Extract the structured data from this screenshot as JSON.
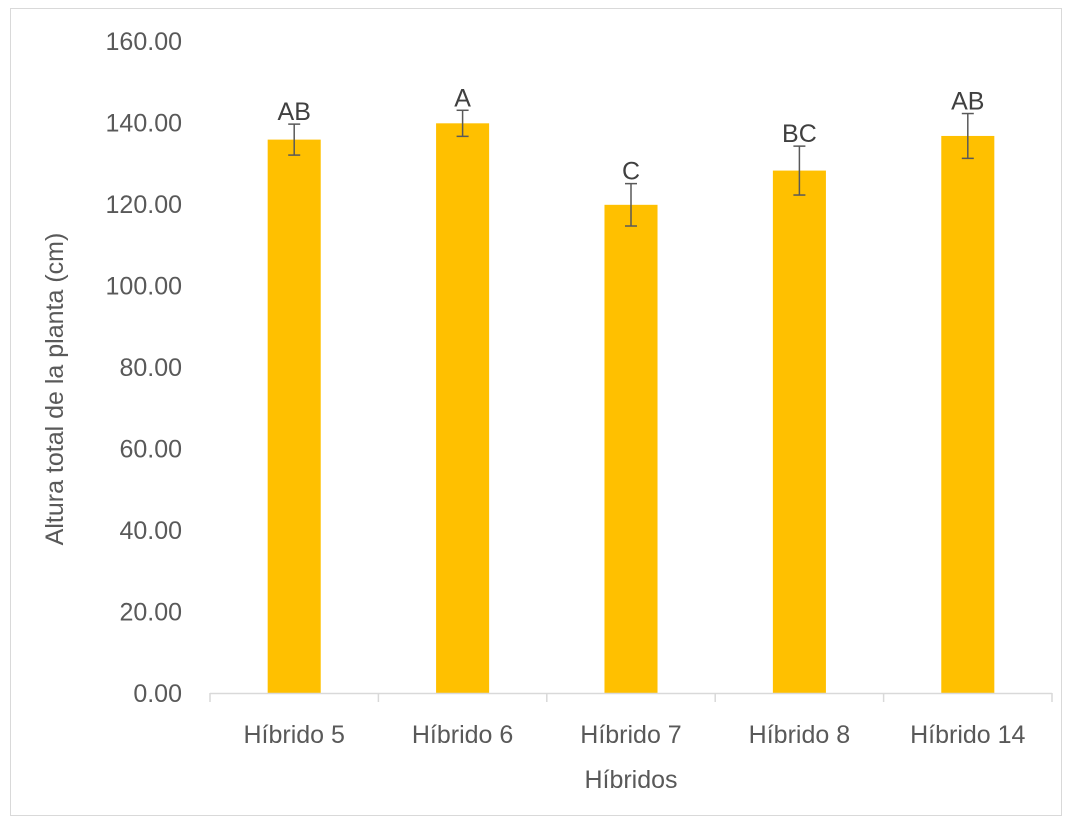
{
  "chart_data": {
    "type": "bar",
    "categories": [
      "Híbrido 5",
      "Híbrido 6",
      "Híbrido 7",
      "Híbrido 8",
      "Híbrido 14"
    ],
    "series": [
      {
        "values": [
          135.8,
          139.8,
          119.8,
          128.2,
          136.7
        ],
        "error": [
          3.8,
          3.2,
          5.2,
          6.0,
          5.5
        ],
        "labels": [
          "AB",
          "A",
          "C",
          "BC",
          "AB"
        ]
      }
    ],
    "title": "",
    "xlabel": "Híbridos",
    "ylabel": "Altura total de la planta (cm)",
    "ylim": [
      0,
      160
    ],
    "yticks": [
      "0.00",
      "20.00",
      "40.00",
      "60.00",
      "80.00",
      "100.00",
      "120.00",
      "140.00",
      "160.00"
    ],
    "grid": false,
    "legend": "none",
    "colors": {
      "bar": "#FFC000",
      "error_bar": "#595959",
      "axis": "#d9d9d9",
      "text": "#595959"
    }
  }
}
